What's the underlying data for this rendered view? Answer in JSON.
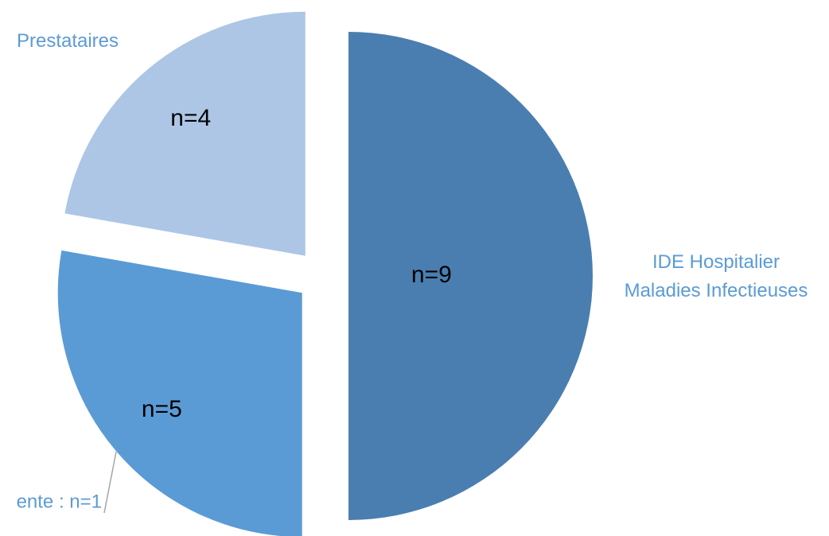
{
  "chart_data": {
    "type": "pie",
    "categories": [
      "IDE Hospitalier\nMaladies Infectieuses",
      null,
      "Prestataires"
    ],
    "values": [
      9,
      5,
      4
    ],
    "value_labels": [
      "n=9",
      "n=5",
      "n=4"
    ],
    "colors": [
      "#4a7eb0",
      "#5b9bd5",
      "#adc6e5"
    ],
    "exploded": true,
    "annotations": [
      "ente : n=1"
    ]
  }
}
